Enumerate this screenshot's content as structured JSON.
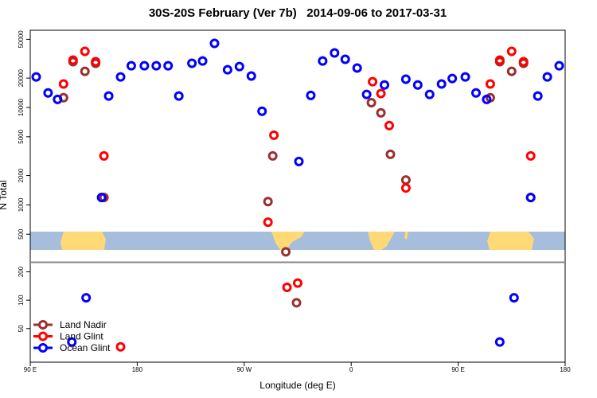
{
  "chart_data": {
    "type": "scatter",
    "title": "30S-20S February (Ver 7b)   2014-09-06 to 2017-03-31",
    "x_label": "Longitude (deg E)",
    "y_label": "N Total",
    "xlim": [
      90,
      540
    ],
    "xticks": [
      {
        "value": 90,
        "label": "90 E"
      },
      180,
      {
        "value": 270,
        "label": "90 W"
      },
      {
        "value": 360,
        "label": "0"
      },
      {
        "value": 450,
        "label": "90 E"
      },
      {
        "value": 540,
        "label": "180"
      }
    ],
    "log_y": true,
    "panels": [
      {
        "ylim": [
          260,
          62000
        ],
        "yticks": [
          500,
          1000,
          2000,
          5000,
          10000,
          20000,
          50000
        ]
      },
      {
        "ylim": [
          22,
          255
        ],
        "yticks": [
          50,
          100,
          200
        ]
      }
    ],
    "legend": "bottom-left",
    "series": [
      {
        "name": "Land Nadir",
        "color": "#9b2f2f",
        "x": [
          118,
          126,
          136,
          145,
          152,
          290,
          294,
          305,
          314,
          377,
          385,
          393,
          406,
          477,
          485,
          495,
          505,
          511
        ],
        "values": [
          12600,
          29500,
          23500,
          28400,
          1190,
          1080,
          3180,
          330,
          94,
          11200,
          8810,
          3300,
          1800,
          12600,
          29500,
          23500,
          28400,
          1190
        ]
      },
      {
        "name": "Land Glint",
        "color": "#ff0000",
        "x": [
          118,
          126,
          136,
          145,
          152,
          166,
          290,
          295,
          306,
          315,
          378,
          385,
          392,
          406,
          477,
          485,
          495,
          505,
          511
        ],
        "values": [
          17400,
          30600,
          37700,
          29500,
          3180,
          32,
          664,
          5190,
          137,
          152,
          18400,
          13900,
          6520,
          1490,
          17400,
          30600,
          37700,
          29500,
          3180
        ]
      },
      {
        "name": "Ocean Glint",
        "color": "#0000ff",
        "x": [
          95,
          105,
          113,
          125,
          137,
          150,
          156,
          166,
          175,
          186,
          196,
          206,
          215,
          226,
          235,
          245,
          256,
          266,
          276,
          285,
          316,
          326,
          336,
          346,
          355,
          365,
          373,
          388,
          406,
          416,
          426,
          436,
          445,
          456,
          465,
          474,
          485,
          497,
          511,
          517,
          525,
          535
        ],
        "values": [
          20600,
          14100,
          12100,
          36,
          106,
          1190,
          13100,
          20600,
          26800,
          26800,
          26800,
          26800,
          13100,
          28400,
          30000,
          45500,
          24400,
          26300,
          21000,
          9140,
          2790,
          13300,
          30000,
          36300,
          31200,
          25400,
          13600,
          17000,
          19500,
          17000,
          13600,
          17400,
          19800,
          20600,
          14100,
          12100,
          36,
          106,
          1190,
          13100,
          20600,
          26800
        ]
      }
    ]
  }
}
